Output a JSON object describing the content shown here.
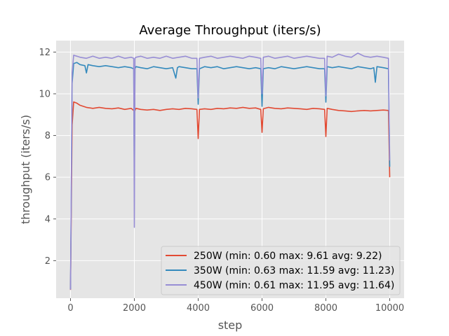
{
  "chart_data": {
    "type": "line",
    "title": "Average Throughput (iters/s)",
    "xlabel": "step",
    "ylabel": "throughput (iters/s)",
    "xlim": [
      -450,
      10450
    ],
    "ylim": [
      0.2,
      12.55
    ],
    "xticks": [
      0,
      2000,
      4000,
      6000,
      8000,
      10000
    ],
    "yticks": [
      2,
      4,
      6,
      8,
      10,
      12
    ],
    "grid": true,
    "legend_position": "bottom-right",
    "series": [
      {
        "name": "250W",
        "legend_label": "250W (min: 0.60 max: 9.61 avg: 9.22)",
        "color": "#e24a33",
        "x": [
          0,
          50,
          100,
          200,
          300,
          500,
          700,
          900,
          1100,
          1300,
          1500,
          1700,
          1900,
          1980,
          2000,
          2020,
          2050,
          2200,
          2400,
          2600,
          2800,
          3000,
          3200,
          3400,
          3600,
          3800,
          3960,
          4000,
          4040,
          4200,
          4400,
          4600,
          4800,
          5000,
          5200,
          5400,
          5600,
          5800,
          5960,
          6000,
          6040,
          6200,
          6400,
          6600,
          6800,
          7000,
          7200,
          7400,
          7600,
          7800,
          7960,
          8000,
          8040,
          8200,
          8400,
          8600,
          8800,
          9000,
          9200,
          9400,
          9600,
          9800,
          9960,
          10000
        ],
        "y": [
          0.6,
          8.5,
          9.61,
          9.55,
          9.45,
          9.35,
          9.3,
          9.35,
          9.3,
          9.28,
          9.32,
          9.25,
          9.3,
          9.2,
          9.0,
          9.2,
          9.3,
          9.25,
          9.22,
          9.25,
          9.2,
          9.25,
          9.28,
          9.25,
          9.3,
          9.28,
          9.25,
          7.85,
          9.25,
          9.28,
          9.25,
          9.3,
          9.28,
          9.32,
          9.3,
          9.35,
          9.3,
          9.32,
          9.25,
          8.15,
          9.28,
          9.35,
          9.3,
          9.28,
          9.32,
          9.3,
          9.28,
          9.25,
          9.3,
          9.28,
          9.25,
          7.95,
          9.3,
          9.25,
          9.2,
          9.18,
          9.15,
          9.18,
          9.2,
          9.18,
          9.2,
          9.22,
          9.2,
          6.0
        ]
      },
      {
        "name": "350W",
        "legend_label": "350W (min: 0.63 max: 11.59 avg: 11.23)",
        "color": "#348abd",
        "x": [
          0,
          50,
          100,
          200,
          300,
          450,
          500,
          550,
          700,
          900,
          1100,
          1300,
          1500,
          1700,
          1900,
          1980,
          2000,
          2020,
          2050,
          2200,
          2400,
          2600,
          2800,
          3000,
          3200,
          3300,
          3350,
          3400,
          3600,
          3800,
          3960,
          4000,
          4040,
          4200,
          4400,
          4600,
          4800,
          5000,
          5200,
          5400,
          5600,
          5800,
          5960,
          6000,
          6040,
          6200,
          6400,
          6600,
          6800,
          7000,
          7200,
          7400,
          7600,
          7800,
          7960,
          8000,
          8040,
          8200,
          8400,
          8600,
          8800,
          9000,
          9200,
          9400,
          9500,
          9550,
          9600,
          9800,
          9960,
          10000
        ],
        "y": [
          0.63,
          10.5,
          11.45,
          11.5,
          11.4,
          11.35,
          11.0,
          11.4,
          11.35,
          11.3,
          11.35,
          11.3,
          11.25,
          11.3,
          11.25,
          11.2,
          5.5,
          11.2,
          11.3,
          11.25,
          11.2,
          11.3,
          11.25,
          11.2,
          11.25,
          10.75,
          11.25,
          11.3,
          11.25,
          11.2,
          11.2,
          9.5,
          11.2,
          11.3,
          11.25,
          11.3,
          11.2,
          11.25,
          11.3,
          11.25,
          11.2,
          11.25,
          11.2,
          9.4,
          11.2,
          11.25,
          11.2,
          11.3,
          11.25,
          11.2,
          11.25,
          11.3,
          11.25,
          11.2,
          11.2,
          9.6,
          11.3,
          11.25,
          11.3,
          11.25,
          11.2,
          11.3,
          11.25,
          11.2,
          11.25,
          10.55,
          11.3,
          11.25,
          11.2,
          6.5
        ]
      },
      {
        "name": "450W",
        "legend_label": "450W (min: 0.61 max: 11.95 avg: 11.64)",
        "color": "#988ed5",
        "x": [
          0,
          50,
          100,
          200,
          300,
          500,
          700,
          900,
          1100,
          1300,
          1500,
          1700,
          1900,
          1980,
          2000,
          2020,
          2050,
          2200,
          2400,
          2600,
          2800,
          3000,
          3200,
          3400,
          3600,
          3800,
          3960,
          4000,
          4040,
          4200,
          4400,
          4600,
          4800,
          5000,
          5200,
          5400,
          5600,
          5800,
          5960,
          6000,
          6040,
          6200,
          6400,
          6600,
          6800,
          7000,
          7200,
          7400,
          7600,
          7800,
          7960,
          8000,
          8040,
          8200,
          8400,
          8600,
          8800,
          9000,
          9200,
          9400,
          9600,
          9800,
          9960,
          10000
        ],
        "y": [
          0.61,
          11.0,
          11.85,
          11.8,
          11.75,
          11.7,
          11.8,
          11.7,
          11.75,
          11.7,
          11.8,
          11.7,
          11.75,
          11.7,
          3.6,
          11.7,
          11.75,
          11.8,
          11.7,
          11.75,
          11.7,
          11.8,
          11.7,
          11.75,
          11.8,
          11.7,
          11.7,
          9.8,
          11.7,
          11.75,
          11.8,
          11.7,
          11.75,
          11.8,
          11.75,
          11.7,
          11.8,
          11.75,
          11.7,
          10.0,
          11.75,
          11.8,
          11.7,
          11.75,
          11.8,
          11.7,
          11.75,
          11.8,
          11.75,
          11.7,
          11.7,
          9.9,
          11.8,
          11.75,
          11.9,
          11.8,
          11.75,
          11.95,
          11.8,
          11.75,
          11.8,
          11.75,
          11.7,
          6.8
        ]
      }
    ]
  }
}
